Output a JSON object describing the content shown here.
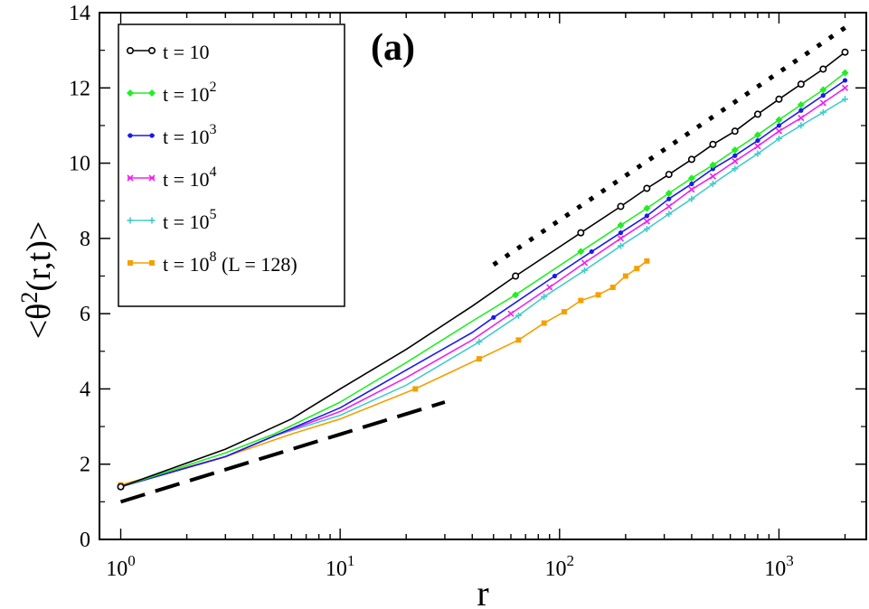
{
  "chart_data": {
    "type": "line",
    "panel_label": "(a)",
    "xlabel": "r",
    "ylabel": {
      "base": "<θ",
      "sup": "2",
      "tail": "(r,t)>"
    },
    "xscale": "log",
    "xlim": [
      0.8,
      2500
    ],
    "ylim": [
      0,
      14
    ],
    "x_ticks": [
      {
        "base": "10",
        "exp": "0",
        "value": 1
      },
      {
        "base": "10",
        "exp": "1",
        "value": 10
      },
      {
        "base": "10",
        "exp": "2",
        "value": 100
      },
      {
        "base": "10",
        "exp": "3",
        "value": 1000
      }
    ],
    "y_ticks": [
      0,
      2,
      4,
      6,
      8,
      10,
      12,
      14
    ],
    "legend_position": "top-left",
    "series": [
      {
        "name": "t = 10",
        "label_base": "t = 10",
        "label_exp": "",
        "label_suffix": "",
        "color": "#000000",
        "marker": "circle-open",
        "x": [
          1,
          3,
          6,
          10,
          20,
          40,
          63,
          125,
          190,
          250,
          315,
          400,
          500,
          630,
          800,
          1000,
          1260,
          1590,
          2000
        ],
        "y": [
          1.4,
          2.4,
          3.2,
          4.0,
          5.05,
          6.2,
          7.0,
          8.15,
          8.85,
          9.33,
          9.7,
          10.1,
          10.5,
          10.85,
          11.3,
          11.7,
          12.1,
          12.5,
          12.95
        ],
        "marker_from": 63
      },
      {
        "name": "t = 10^2",
        "label_base": "t = 10",
        "label_exp": "2",
        "label_suffix": "",
        "color": "#22ee22",
        "marker": "diamond",
        "x": [
          1,
          3,
          5,
          10,
          20,
          40,
          63,
          125,
          190,
          250,
          315,
          400,
          500,
          630,
          800,
          1000,
          1260,
          1590,
          2000
        ],
        "y": [
          1.4,
          2.3,
          2.8,
          3.65,
          4.7,
          5.8,
          6.5,
          7.65,
          8.35,
          8.8,
          9.2,
          9.6,
          9.95,
          10.35,
          10.75,
          11.15,
          11.55,
          11.95,
          12.4
        ],
        "marker_from": 63
      },
      {
        "name": "t = 10^3",
        "label_base": "t = 10",
        "label_exp": "3",
        "label_suffix": "",
        "color": "#1a1aee",
        "marker": "dot",
        "x": [
          1,
          3,
          5,
          10,
          20,
          40,
          50,
          95,
          140,
          190,
          250,
          315,
          400,
          500,
          630,
          800,
          1000,
          1260,
          1590,
          2000
        ],
        "y": [
          1.4,
          2.2,
          2.75,
          3.5,
          4.5,
          5.5,
          5.9,
          7.0,
          7.65,
          8.15,
          8.6,
          9.05,
          9.45,
          9.85,
          10.2,
          10.6,
          11.0,
          11.4,
          11.8,
          12.2
        ],
        "marker_from": 50
      },
      {
        "name": "t = 10^4",
        "label_base": "t = 10",
        "label_exp": "4",
        "label_suffix": "",
        "color": "#ee22ee",
        "marker": "x",
        "x": [
          1,
          3,
          5,
          10,
          20,
          40,
          60,
          90,
          130,
          190,
          250,
          315,
          400,
          500,
          630,
          800,
          1000,
          1260,
          1590,
          2000
        ],
        "y": [
          1.4,
          2.2,
          2.75,
          3.4,
          4.3,
          5.3,
          6.0,
          6.7,
          7.35,
          8.0,
          8.45,
          8.85,
          9.3,
          9.65,
          10.05,
          10.45,
          10.85,
          11.2,
          11.6,
          12.0
        ],
        "marker_from": 60
      },
      {
        "name": "t = 10^5",
        "label_base": "t = 10",
        "label_exp": "5",
        "label_suffix": "",
        "color": "#44cccc",
        "marker": "plus",
        "x": [
          1,
          3,
          5,
          10,
          20,
          43,
          65,
          85,
          130,
          190,
          250,
          315,
          400,
          500,
          630,
          800,
          1000,
          1260,
          1590,
          2000
        ],
        "y": [
          1.4,
          2.2,
          2.75,
          3.3,
          4.1,
          5.25,
          5.95,
          6.45,
          7.15,
          7.8,
          8.25,
          8.65,
          9.05,
          9.45,
          9.85,
          10.25,
          10.65,
          11.0,
          11.35,
          11.7
        ],
        "marker_from": 43
      },
      {
        "name": "t = 10^8 (L = 128)",
        "label_base": "t = 10",
        "label_exp": "8",
        "label_suffix": " (L = 128)",
        "color": "#f5a000",
        "marker": "square",
        "x": [
          1,
          3,
          6,
          10,
          22,
          43,
          65,
          85,
          105,
          125,
          150,
          175,
          200,
          225,
          250
        ],
        "y": [
          1.45,
          2.2,
          2.8,
          3.2,
          4.0,
          4.8,
          5.3,
          5.75,
          6.05,
          6.35,
          6.5,
          6.7,
          7.0,
          7.2,
          7.4
        ],
        "marker_from": 22
      }
    ],
    "reference_lines": [
      {
        "name": "dotted-reference",
        "style": "dotted",
        "x": [
          50,
          2000
        ],
        "y": [
          7.3,
          13.6
        ]
      },
      {
        "name": "dashed-reference",
        "style": "dashed",
        "x": [
          1,
          30
        ],
        "y": [
          1.0,
          3.65
        ]
      }
    ]
  }
}
